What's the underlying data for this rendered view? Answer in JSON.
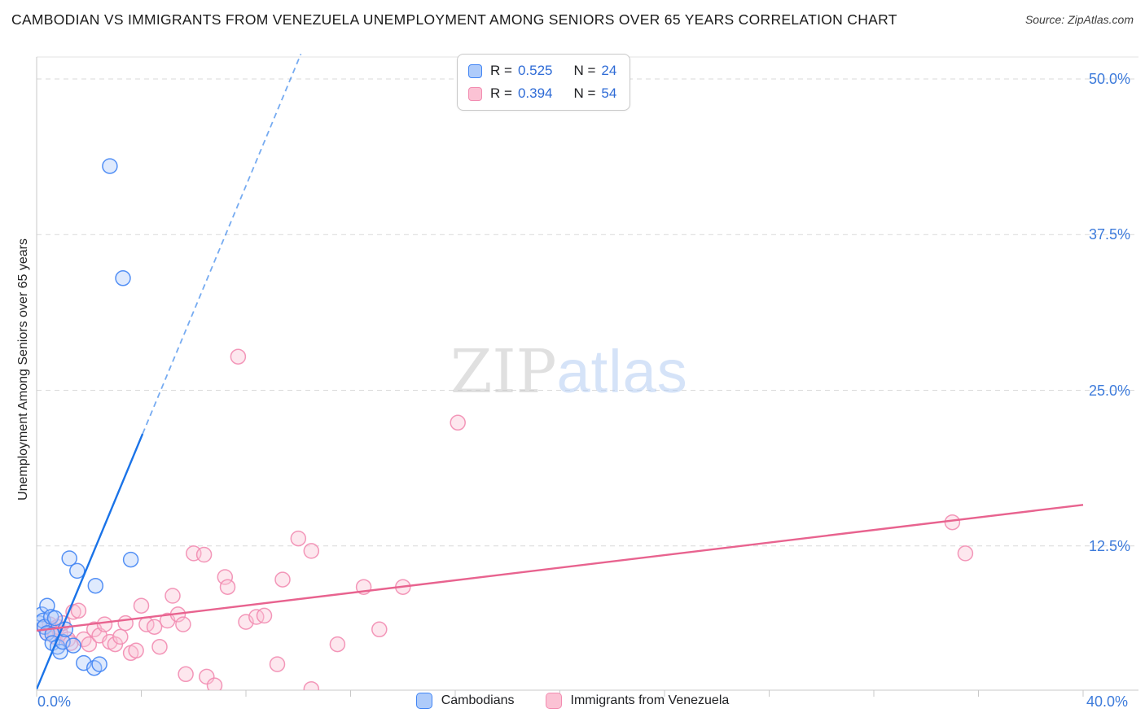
{
  "header": {
    "title": "CAMBODIAN VS IMMIGRANTS FROM VENEZUELA UNEMPLOYMENT AMONG SENIORS OVER 65 YEARS CORRELATION CHART",
    "source": "Source: ZipAtlas.com"
  },
  "watermark": {
    "part1": "ZIP",
    "part2": "atlas"
  },
  "axes": {
    "ylabel": "Unemployment Among Seniors over 65 years",
    "x_min_label": "0.0%",
    "x_max_label": "40.0%",
    "y_tick_labels": [
      "12.5%",
      "25.0%",
      "37.5%",
      "50.0%"
    ]
  },
  "stats_legend": {
    "rows": [
      {
        "r_label": "R =",
        "r_value": "0.525",
        "n_label": "N =",
        "n_value": "24"
      },
      {
        "r_label": "R =",
        "r_value": "0.394",
        "n_label": "N =",
        "n_value": "54"
      }
    ]
  },
  "series_legend": [
    {
      "label": "Cambodians"
    },
    {
      "label": "Immigrants from Venezuela"
    }
  ],
  "colors": {
    "grid": "#d9d9d9",
    "axis": "#c9c9c9",
    "tick_label_blue": "#3d7bdb",
    "stat_value_blue": "#2e6bd6"
  },
  "chart_data": {
    "type": "scatter",
    "title": "Cambodian vs Immigrants from Venezuela Unemployment Among Seniors over 65 years",
    "xlabel": "",
    "ylabel": "Unemployment Among Seniors over 65 years",
    "xlim": [
      0,
      0.4
    ],
    "ylim": [
      0,
      0.52
    ],
    "x_tick_step": 0.04,
    "y_gridlines": [
      0.125,
      0.25,
      0.375,
      0.5
    ],
    "grid": "dashed-horizontal",
    "legend_position": "top-center and bottom-center",
    "series": [
      {
        "name": "Cambodians",
        "slug": "cambodians",
        "R": 0.525,
        "N": 24,
        "fill": "#aecbfa",
        "stroke": "#4285f4",
        "line": "#1a73e8",
        "trend_solid": [
          [
            0.0,
            0.01
          ],
          [
            0.0405,
            0.215
          ]
        ],
        "trend_dashed": [
          [
            0.0405,
            0.215
          ],
          [
            0.101,
            0.52
          ]
        ],
        "points": [
          [
            0.001,
            0.063
          ],
          [
            0.002,
            0.07
          ],
          [
            0.0025,
            0.065
          ],
          [
            0.003,
            0.06
          ],
          [
            0.004,
            0.077
          ],
          [
            0.004,
            0.055
          ],
          [
            0.0055,
            0.068
          ],
          [
            0.006,
            0.054
          ],
          [
            0.006,
            0.047
          ],
          [
            0.007,
            0.067
          ],
          [
            0.008,
            0.044
          ],
          [
            0.009,
            0.04
          ],
          [
            0.01,
            0.048
          ],
          [
            0.011,
            0.058
          ],
          [
            0.0125,
            0.115
          ],
          [
            0.014,
            0.045
          ],
          [
            0.0155,
            0.105
          ],
          [
            0.018,
            0.031
          ],
          [
            0.022,
            0.027
          ],
          [
            0.0225,
            0.093
          ],
          [
            0.024,
            0.03
          ],
          [
            0.028,
            0.43
          ],
          [
            0.033,
            0.34
          ],
          [
            0.036,
            0.114
          ]
        ]
      },
      {
        "name": "Immigrants from Venezuela",
        "slug": "venezuela",
        "R": 0.394,
        "N": 54,
        "fill": "#fbc2d4",
        "stroke": "#f28cb1",
        "line": "#e8638f",
        "trend_solid": [
          [
            0.0,
            0.057
          ],
          [
            0.4,
            0.158
          ]
        ],
        "trend_dashed": null,
        "points": [
          [
            0.003,
            0.06
          ],
          [
            0.004,
            0.055
          ],
          [
            0.005,
            0.062
          ],
          [
            0.006,
            0.058
          ],
          [
            0.007,
            0.052
          ],
          [
            0.008,
            0.06
          ],
          [
            0.009,
            0.055
          ],
          [
            0.01,
            0.063
          ],
          [
            0.012,
            0.05
          ],
          [
            0.013,
            0.047
          ],
          [
            0.014,
            0.072
          ],
          [
            0.016,
            0.073
          ],
          [
            0.018,
            0.05
          ],
          [
            0.02,
            0.046
          ],
          [
            0.022,
            0.058
          ],
          [
            0.024,
            0.053
          ],
          [
            0.026,
            0.062
          ],
          [
            0.028,
            0.048
          ],
          [
            0.03,
            0.046
          ],
          [
            0.032,
            0.052
          ],
          [
            0.034,
            0.063
          ],
          [
            0.036,
            0.039
          ],
          [
            0.038,
            0.041
          ],
          [
            0.04,
            0.077
          ],
          [
            0.042,
            0.062
          ],
          [
            0.045,
            0.06
          ],
          [
            0.047,
            0.044
          ],
          [
            0.05,
            0.065
          ],
          [
            0.052,
            0.085
          ],
          [
            0.054,
            0.07
          ],
          [
            0.056,
            0.062
          ],
          [
            0.057,
            0.022
          ],
          [
            0.06,
            0.119
          ],
          [
            0.064,
            0.118
          ],
          [
            0.065,
            0.02
          ],
          [
            0.068,
            0.013
          ],
          [
            0.072,
            0.1
          ],
          [
            0.073,
            0.092
          ],
          [
            0.077,
            0.277
          ],
          [
            0.08,
            0.064
          ],
          [
            0.084,
            0.068
          ],
          [
            0.087,
            0.069
          ],
          [
            0.092,
            0.03
          ],
          [
            0.094,
            0.098
          ],
          [
            0.1,
            0.131
          ],
          [
            0.105,
            0.121
          ],
          [
            0.105,
            0.01
          ],
          [
            0.115,
            0.046
          ],
          [
            0.125,
            0.092
          ],
          [
            0.131,
            0.058
          ],
          [
            0.14,
            0.092
          ],
          [
            0.161,
            0.224
          ],
          [
            0.35,
            0.144
          ],
          [
            0.355,
            0.119
          ]
        ]
      }
    ]
  }
}
